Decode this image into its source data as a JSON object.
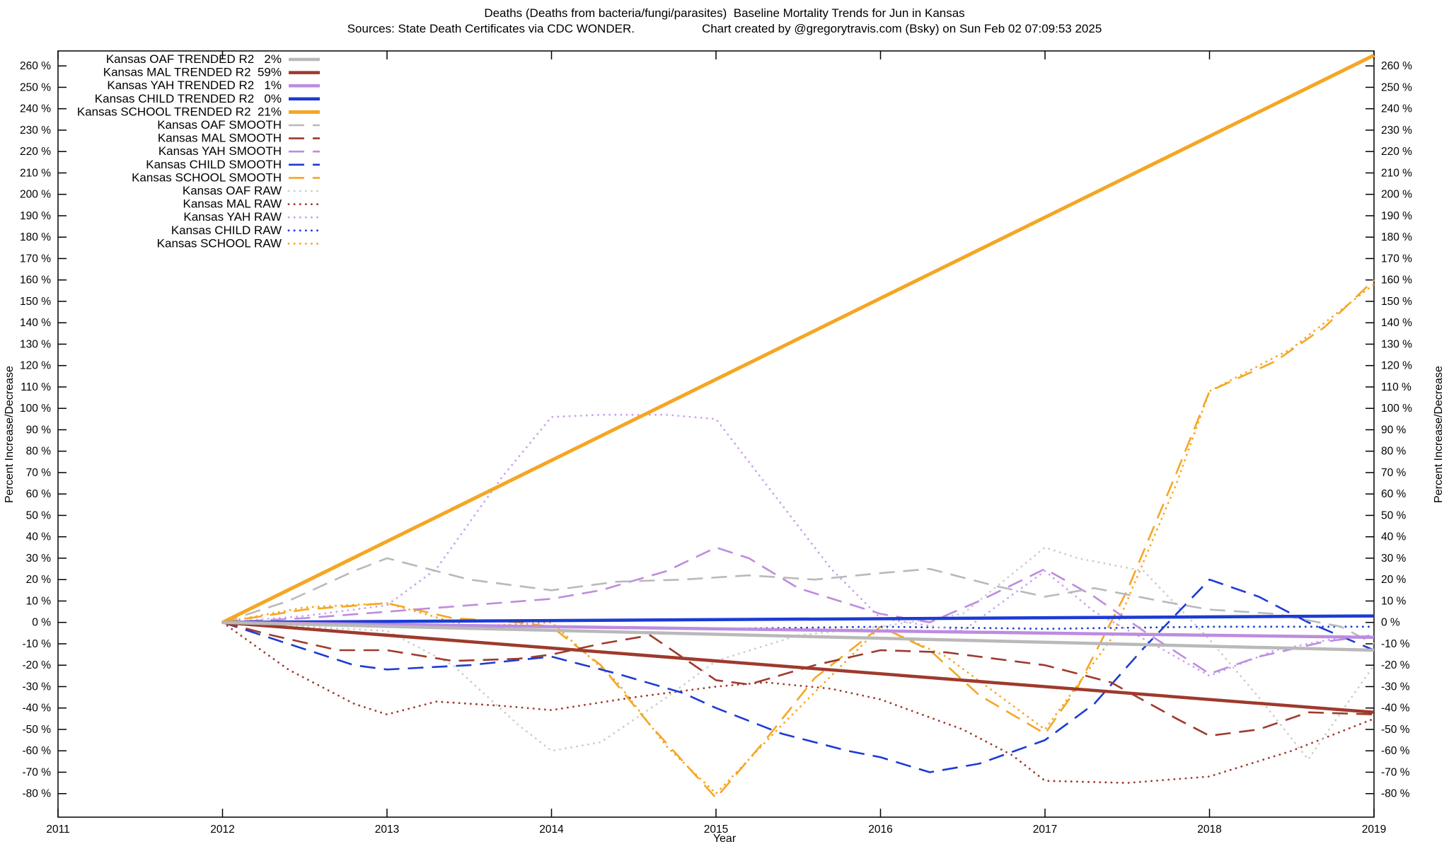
{
  "title": {
    "line1": "Deaths (Deaths from bacteria/fungi/parasites)  Baseline Mortality Trends for Jun in Kansas",
    "sources": "Sources: State Death Certificates via CDC WONDER.",
    "credit": "Chart created by @gregorytravis.com (Bsky) on Sun Feb 02 07:09:53 2025"
  },
  "chart_data": {
    "type": "line",
    "title": "Deaths (Deaths from bacteria/fungi/parasites) Baseline Mortality Trends for Jun in Kansas",
    "xlabel": "Year",
    "ylabel": "Percent Increase/Decrease",
    "xlim": [
      2011,
      2019
    ],
    "ylim": [
      -91,
      267
    ],
    "x_ticks": [
      2011,
      2012,
      2013,
      2014,
      2015,
      2016,
      2017,
      2018,
      2019
    ],
    "y_ticks": [
      -80,
      -70,
      -60,
      -50,
      -40,
      -30,
      -20,
      -10,
      0,
      10,
      20,
      30,
      40,
      50,
      60,
      70,
      80,
      90,
      100,
      110,
      120,
      130,
      140,
      150,
      160,
      170,
      180,
      190,
      200,
      210,
      220,
      230,
      240,
      250,
      260
    ],
    "y_tick_suffix": " %",
    "grid": false,
    "legend_position": "top-left-inside",
    "series": [
      {
        "id": "oaf-trended",
        "label": "Kansas OAF TRENDED R2   2%",
        "r2": "2%",
        "color": "#b9b9b9",
        "style": "solid",
        "width": 4.5,
        "points": [
          [
            2012,
            0
          ],
          [
            2019,
            -13
          ]
        ]
      },
      {
        "id": "mal-trended",
        "label": "Kansas MAL TRENDED R2  59%",
        "r2": "59%",
        "color": "#9e3a2c",
        "style": "solid",
        "width": 4.5,
        "points": [
          [
            2012,
            0
          ],
          [
            2019,
            -42
          ]
        ]
      },
      {
        "id": "yah-trended",
        "label": "Kansas YAH TRENDED R2   1%",
        "r2": "1%",
        "color": "#bd8ce0",
        "style": "solid",
        "width": 4.5,
        "points": [
          [
            2012,
            0
          ],
          [
            2019,
            -7
          ]
        ]
      },
      {
        "id": "child-trended",
        "label": "Kansas CHILD TRENDED R2   0%",
        "r2": "0%",
        "color": "#1c3bd4",
        "style": "solid",
        "width": 4.5,
        "points": [
          [
            2012,
            0
          ],
          [
            2019,
            3
          ]
        ]
      },
      {
        "id": "school-trended",
        "label": "Kansas SCHOOL TRENDED R2  21%",
        "r2": "21%",
        "color": "#f5a623",
        "style": "solid",
        "width": 5,
        "points": [
          [
            2012,
            0
          ],
          [
            2019,
            265
          ]
        ]
      },
      {
        "id": "oaf-smooth",
        "label": "Kansas OAF SMOOTH",
        "color": "#b9b9b9",
        "style": "dashed",
        "width": 2.6,
        "points": [
          [
            2012,
            0
          ],
          [
            2012.4,
            10
          ],
          [
            2012.8,
            24
          ],
          [
            2013,
            30
          ],
          [
            2013.2,
            26
          ],
          [
            2013.5,
            20
          ],
          [
            2014,
            15
          ],
          [
            2014.4,
            19
          ],
          [
            2014.8,
            20
          ],
          [
            2015.2,
            22
          ],
          [
            2015.6,
            20
          ],
          [
            2016,
            23
          ],
          [
            2016.3,
            25
          ],
          [
            2016.7,
            17
          ],
          [
            2017,
            12
          ],
          [
            2017.3,
            16
          ],
          [
            2017.7,
            10
          ],
          [
            2018,
            6
          ],
          [
            2018.4,
            4
          ],
          [
            2018.8,
            -2
          ],
          [
            2019,
            -10
          ]
        ]
      },
      {
        "id": "mal-smooth",
        "label": "Kansas MAL SMOOTH",
        "color": "#9e3a2c",
        "style": "dashed",
        "width": 2.6,
        "points": [
          [
            2012,
            0
          ],
          [
            2012.3,
            -6
          ],
          [
            2012.7,
            -13
          ],
          [
            2013,
            -13
          ],
          [
            2013.4,
            -18
          ],
          [
            2013.8,
            -17
          ],
          [
            2014,
            -15
          ],
          [
            2014.3,
            -10
          ],
          [
            2014.6,
            -6
          ],
          [
            2015,
            -27
          ],
          [
            2015.2,
            -29
          ],
          [
            2015.6,
            -20
          ],
          [
            2016,
            -13
          ],
          [
            2016.4,
            -14
          ],
          [
            2017,
            -20
          ],
          [
            2017.4,
            -28
          ],
          [
            2017.8,
            -45
          ],
          [
            2018,
            -53
          ],
          [
            2018.3,
            -50
          ],
          [
            2018.6,
            -42
          ],
          [
            2019,
            -43
          ]
        ]
      },
      {
        "id": "yah-smooth",
        "label": "Kansas YAH SMOOTH",
        "color": "#bd8ce0",
        "style": "dashed",
        "width": 2.6,
        "points": [
          [
            2012,
            0
          ],
          [
            2012.5,
            2
          ],
          [
            2013,
            5
          ],
          [
            2013.5,
            8
          ],
          [
            2014,
            11
          ],
          [
            2014.3,
            15
          ],
          [
            2014.7,
            24
          ],
          [
            2015,
            35
          ],
          [
            2015.2,
            30
          ],
          [
            2015.5,
            16
          ],
          [
            2016,
            4
          ],
          [
            2016.3,
            0
          ],
          [
            2016.6,
            10
          ],
          [
            2017,
            25
          ],
          [
            2017.3,
            12
          ],
          [
            2017.6,
            -4
          ],
          [
            2018,
            -24
          ],
          [
            2018.3,
            -16
          ],
          [
            2018.7,
            -9
          ],
          [
            2019,
            -6
          ]
        ]
      },
      {
        "id": "child-smooth",
        "label": "Kansas CHILD SMOOTH",
        "color": "#1c3bd4",
        "style": "dashed",
        "width": 2.6,
        "points": [
          [
            2012,
            0
          ],
          [
            2012.4,
            -10
          ],
          [
            2012.8,
            -20
          ],
          [
            2013,
            -22
          ],
          [
            2013.5,
            -20
          ],
          [
            2014,
            -16
          ],
          [
            2014.4,
            -24
          ],
          [
            2014.8,
            -33
          ],
          [
            2015,
            -40
          ],
          [
            2015.4,
            -52
          ],
          [
            2015.8,
            -60
          ],
          [
            2016,
            -63
          ],
          [
            2016.3,
            -70
          ],
          [
            2016.6,
            -66
          ],
          [
            2017,
            -55
          ],
          [
            2017.3,
            -38
          ],
          [
            2017.6,
            -12
          ],
          [
            2018,
            20
          ],
          [
            2018.3,
            12
          ],
          [
            2018.6,
            0
          ],
          [
            2019,
            -13
          ]
        ]
      },
      {
        "id": "school-smooth",
        "label": "Kansas SCHOOL SMOOTH",
        "color": "#f5a623",
        "style": "dashed",
        "width": 2.6,
        "points": [
          [
            2012,
            0
          ],
          [
            2012.5,
            6
          ],
          [
            2013,
            9
          ],
          [
            2013.4,
            2
          ],
          [
            2013.8,
            0
          ],
          [
            2014,
            -2
          ],
          [
            2014.3,
            -20
          ],
          [
            2014.6,
            -48
          ],
          [
            2015,
            -82
          ],
          [
            2015.3,
            -55
          ],
          [
            2015.6,
            -26
          ],
          [
            2016,
            -2
          ],
          [
            2016.3,
            -13
          ],
          [
            2016.6,
            -34
          ],
          [
            2017,
            -52
          ],
          [
            2017.2,
            -30
          ],
          [
            2017.5,
            15
          ],
          [
            2017.8,
            70
          ],
          [
            2018,
            108
          ],
          [
            2018.4,
            122
          ],
          [
            2018.7,
            138
          ],
          [
            2019,
            160
          ]
        ]
      },
      {
        "id": "oaf-raw",
        "label": "Kansas OAF RAW",
        "color": "#cccccc",
        "style": "dotted",
        "width": 2.8,
        "points": [
          [
            2012,
            0
          ],
          [
            2012.5,
            -2
          ],
          [
            2013,
            -4
          ],
          [
            2013.4,
            -20
          ],
          [
            2013.8,
            -48
          ],
          [
            2014,
            -60
          ],
          [
            2014.3,
            -56
          ],
          [
            2014.7,
            -35
          ],
          [
            2015,
            -18
          ],
          [
            2015.5,
            -6
          ],
          [
            2016,
            -2
          ],
          [
            2016.5,
            4
          ],
          [
            2017,
            35
          ],
          [
            2017.2,
            30
          ],
          [
            2017.6,
            24
          ],
          [
            2018,
            -8
          ],
          [
            2018.3,
            -35
          ],
          [
            2018.6,
            -64
          ],
          [
            2019,
            -20
          ]
        ]
      },
      {
        "id": "mal-raw",
        "label": "Kansas MAL RAW",
        "color": "#9e3a2c",
        "style": "dotted",
        "width": 2.8,
        "points": [
          [
            2012,
            0
          ],
          [
            2012.4,
            -22
          ],
          [
            2012.8,
            -38
          ],
          [
            2013,
            -43
          ],
          [
            2013.3,
            -37
          ],
          [
            2013.7,
            -39
          ],
          [
            2014,
            -41
          ],
          [
            2014.5,
            -35
          ],
          [
            2015,
            -30
          ],
          [
            2015.3,
            -28
          ],
          [
            2015.7,
            -31
          ],
          [
            2016,
            -36
          ],
          [
            2016.5,
            -50
          ],
          [
            2016.8,
            -62
          ],
          [
            2017,
            -74
          ],
          [
            2017.5,
            -75
          ],
          [
            2018,
            -72
          ],
          [
            2018.5,
            -60
          ],
          [
            2019,
            -45
          ]
        ]
      },
      {
        "id": "yah-raw",
        "label": "Kansas YAH RAW",
        "color": "#c9a2ee",
        "style": "dotted",
        "width": 2.8,
        "points": [
          [
            2012,
            0
          ],
          [
            2012.5,
            3
          ],
          [
            2013,
            8
          ],
          [
            2013.3,
            25
          ],
          [
            2013.7,
            68
          ],
          [
            2014,
            96
          ],
          [
            2014.3,
            97
          ],
          [
            2014.7,
            97
          ],
          [
            2015,
            95
          ],
          [
            2015.3,
            65
          ],
          [
            2015.7,
            25
          ],
          [
            2016,
            2
          ],
          [
            2016.5,
            -4
          ],
          [
            2017,
            24
          ],
          [
            2017.3,
            5
          ],
          [
            2017.7,
            -12
          ],
          [
            2018,
            -25
          ],
          [
            2018.4,
            -13
          ],
          [
            2018.8,
            -7
          ],
          [
            2019,
            -6
          ]
        ]
      },
      {
        "id": "child-raw",
        "label": "Kansas CHILD RAW",
        "color": "#1c3bd4",
        "style": "dotted",
        "width": 2.8,
        "points": [
          [
            2012,
            0
          ],
          [
            2013,
            -2
          ],
          [
            2014,
            -2
          ],
          [
            2015,
            -3
          ],
          [
            2016,
            -2
          ],
          [
            2017,
            -3
          ],
          [
            2018,
            -2
          ],
          [
            2019,
            -2
          ]
        ]
      },
      {
        "id": "school-raw",
        "label": "Kansas SCHOOL RAW",
        "color": "#f5a623",
        "style": "dotted",
        "width": 2.8,
        "points": [
          [
            2012,
            0
          ],
          [
            2012.5,
            7
          ],
          [
            2013,
            9
          ],
          [
            2013.5,
            -2
          ],
          [
            2014,
            0
          ],
          [
            2014.4,
            -28
          ],
          [
            2014.7,
            -58
          ],
          [
            2015,
            -80
          ],
          [
            2015.4,
            -48
          ],
          [
            2016,
            -2
          ],
          [
            2016.4,
            -16
          ],
          [
            2017,
            -50
          ],
          [
            2017.4,
            -8
          ],
          [
            2017.8,
            65
          ],
          [
            2018,
            108
          ],
          [
            2018.5,
            128
          ],
          [
            2019,
            158
          ]
        ]
      }
    ]
  }
}
